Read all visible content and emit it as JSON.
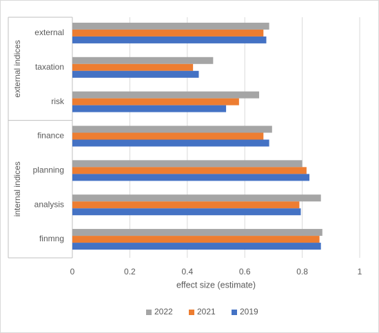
{
  "chart_data": {
    "type": "bar",
    "orientation": "horizontal",
    "categories": [
      "external",
      "taxation",
      "risk",
      "finance",
      "planning",
      "analysis",
      "finmng"
    ],
    "groups": [
      {
        "label": "external indices",
        "categories": [
          "external",
          "taxation",
          "risk"
        ]
      },
      {
        "label": "internal indices",
        "categories": [
          "finance",
          "planning",
          "analysis",
          "finmng"
        ]
      }
    ],
    "series": [
      {
        "name": "2022",
        "color": "#A5A5A5",
        "values": [
          0.685,
          0.49,
          0.65,
          0.695,
          0.8,
          0.865,
          0.87
        ]
      },
      {
        "name": "2021",
        "color": "#ED7D31",
        "values": [
          0.665,
          0.42,
          0.58,
          0.665,
          0.815,
          0.79,
          0.86
        ]
      },
      {
        "name": "2019",
        "color": "#4472C4",
        "values": [
          0.675,
          0.44,
          0.535,
          0.685,
          0.825,
          0.795,
          0.865
        ]
      }
    ],
    "xlabel": "effect size (estimate)",
    "xlim": [
      0,
      1
    ],
    "xticks": [
      "0",
      "0.2",
      "0.4",
      "0.6",
      "0.8",
      "1"
    ],
    "grid": "vertical",
    "legend_position": "bottom"
  }
}
